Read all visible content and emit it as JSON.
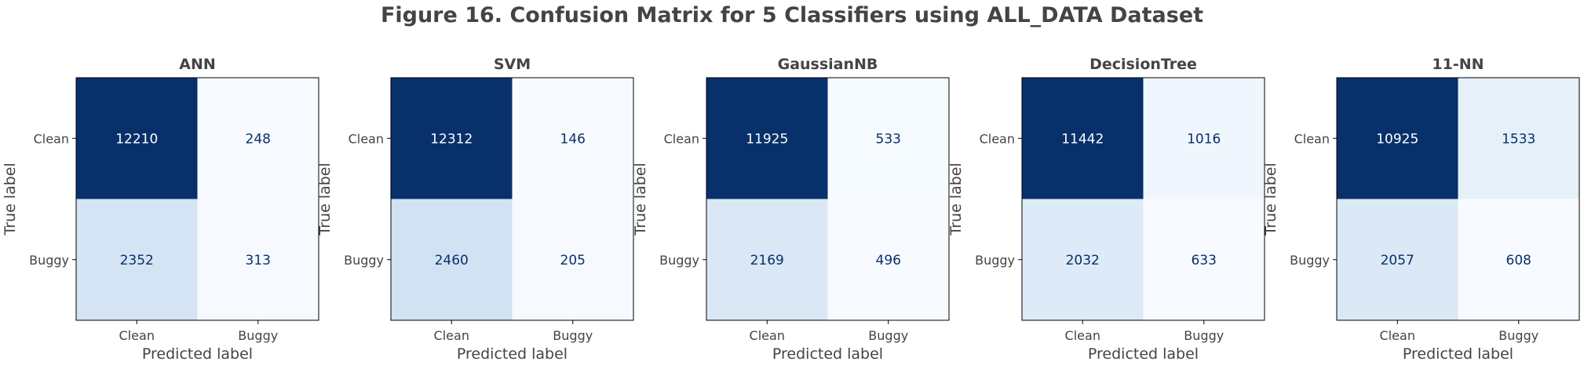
{
  "figure_title": "Figure 16. Confusion Matrix for 5 Classifiers using ALL_DATA Dataset",
  "chart_data": [
    {
      "type": "heatmap",
      "title": "ANN",
      "xlabel": "Predicted label",
      "ylabel": "True label",
      "x_categories": [
        "Clean",
        "Buggy"
      ],
      "y_categories": [
        "Clean",
        "Buggy"
      ],
      "values": [
        [
          12210,
          248
        ],
        [
          2352,
          313
        ]
      ],
      "colormap": "Blues",
      "grid": false
    },
    {
      "type": "heatmap",
      "title": "SVM",
      "xlabel": "Predicted label",
      "ylabel": "True label",
      "x_categories": [
        "Clean",
        "Buggy"
      ],
      "y_categories": [
        "Clean",
        "Buggy"
      ],
      "values": [
        [
          12312,
          146
        ],
        [
          2460,
          205
        ]
      ],
      "colormap": "Blues",
      "grid": false
    },
    {
      "type": "heatmap",
      "title": "GaussianNB",
      "xlabel": "Predicted label",
      "ylabel": "True label",
      "x_categories": [
        "Clean",
        "Buggy"
      ],
      "y_categories": [
        "Clean",
        "Buggy"
      ],
      "values": [
        [
          11925,
          533
        ],
        [
          2169,
          496
        ]
      ],
      "colormap": "Blues",
      "grid": false
    },
    {
      "type": "heatmap",
      "title": "DecisionTree",
      "xlabel": "Predicted label",
      "ylabel": "True label",
      "x_categories": [
        "Clean",
        "Buggy"
      ],
      "y_categories": [
        "Clean",
        "Buggy"
      ],
      "values": [
        [
          11442,
          1016
        ],
        [
          2032,
          633
        ]
      ],
      "colormap": "Blues",
      "grid": false
    },
    {
      "type": "heatmap",
      "title": "11-NN",
      "xlabel": "Predicted label",
      "ylabel": "True label",
      "x_categories": [
        "Clean",
        "Buggy"
      ],
      "y_categories": [
        "Clean",
        "Buggy"
      ],
      "values": [
        [
          10925,
          1533
        ],
        [
          2057,
          608
        ]
      ],
      "colormap": "Blues",
      "grid": false
    }
  ]
}
